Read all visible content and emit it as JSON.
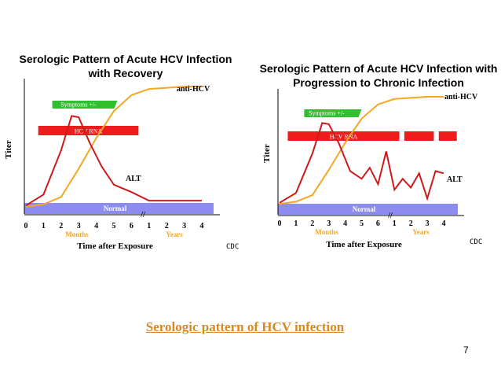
{
  "colors": {
    "antihcv": "#f5a623",
    "alt": "#cc1a1a",
    "hcv_rna": "#ee1c1c",
    "symptoms": "#2fbf2f",
    "normal": "#8c8cf0",
    "caption": "#d48a2a"
  },
  "chart_data": [
    {
      "type": "line",
      "title_lines": [
        "Serologic Pattern of Acute HCV Infection",
        "with Recovery"
      ],
      "ylabel": "Titer",
      "xlabel": "Time after Exposure",
      "x_ticks": [
        "0",
        "1",
        "2",
        "3",
        "4",
        "5",
        "6",
        "1",
        "2",
        "3",
        "4"
      ],
      "x_unit_labels": [
        "Months",
        "Years"
      ],
      "series": [
        {
          "name": "anti-HCV",
          "values": [
            [
              0,
              2
            ],
            [
              1,
              4
            ],
            [
              2,
              10
            ],
            [
              3,
              33
            ],
            [
              4,
              58
            ],
            [
              5,
              80
            ],
            [
              6,
              93
            ],
            [
              7,
              98
            ],
            [
              8,
              99
            ],
            [
              9,
              100
            ],
            [
              10,
              100
            ]
          ]
        },
        {
          "name": "ALT",
          "values": [
            [
              0,
              3
            ],
            [
              1,
              12
            ],
            [
              2,
              48
            ],
            [
              2.6,
              76
            ],
            [
              3,
              75
            ],
            [
              3.6,
              55
            ],
            [
              4.3,
              35
            ],
            [
              5,
              20
            ],
            [
              6,
              14
            ],
            [
              7,
              7
            ],
            [
              8,
              7
            ],
            [
              9,
              7
            ],
            [
              10,
              7
            ]
          ]
        }
      ],
      "bars": [
        {
          "label": "Symptoms +/-",
          "start": 1.5,
          "end": 5.2
        },
        {
          "label": "HCV RNA",
          "start": 0.7,
          "end": 6.4
        }
      ],
      "band_label": "Normal",
      "source": "CDC"
    },
    {
      "type": "line",
      "title_lines": [
        "Serologic Pattern of Acute HCV Infection with",
        "Progression to Chronic Infection"
      ],
      "ylabel": "Titer",
      "xlabel": "Time after Exposure",
      "x_ticks": [
        "0",
        "1",
        "2",
        "3",
        "4",
        "5",
        "6",
        "1",
        "2",
        "3",
        "4"
      ],
      "x_unit_labels": [
        "Months",
        "Years"
      ],
      "series": [
        {
          "name": "anti-HCV",
          "values": [
            [
              0,
              2
            ],
            [
              1,
              4
            ],
            [
              2,
              10
            ],
            [
              3,
              33
            ],
            [
              4,
              58
            ],
            [
              5,
              80
            ],
            [
              6,
              93
            ],
            [
              7,
              98
            ],
            [
              8,
              99
            ],
            [
              9,
              100
            ],
            [
              10,
              100
            ]
          ]
        },
        {
          "name": "ALT",
          "values": [
            [
              0,
              3
            ],
            [
              1,
              12
            ],
            [
              2,
              48
            ],
            [
              2.6,
              76
            ],
            [
              3,
              75
            ],
            [
              3.6,
              58
            ],
            [
              4.3,
              32
            ],
            [
              5,
              25
            ],
            [
              5.5,
              35
            ],
            [
              6,
              20
            ],
            [
              6.5,
              50
            ],
            [
              7,
              15
            ],
            [
              7.5,
              25
            ],
            [
              8,
              17
            ],
            [
              8.5,
              30
            ],
            [
              9,
              7
            ],
            [
              9.5,
              32
            ],
            [
              10,
              30
            ]
          ]
        }
      ],
      "bars": [
        {
          "label": "Symptoms +/-",
          "start": 1.5,
          "end": 5.0
        },
        {
          "label": "HCV RNA",
          "start": 0.5,
          "end": 7.3
        },
        {
          "label": "",
          "start": 7.6,
          "end": 9.4
        },
        {
          "label": "",
          "start": 9.7,
          "end": 10.8
        }
      ],
      "band_label": "Normal",
      "source": "CDC"
    }
  ],
  "caption": "Serologic pattern of HCV infection",
  "page_number": "7"
}
